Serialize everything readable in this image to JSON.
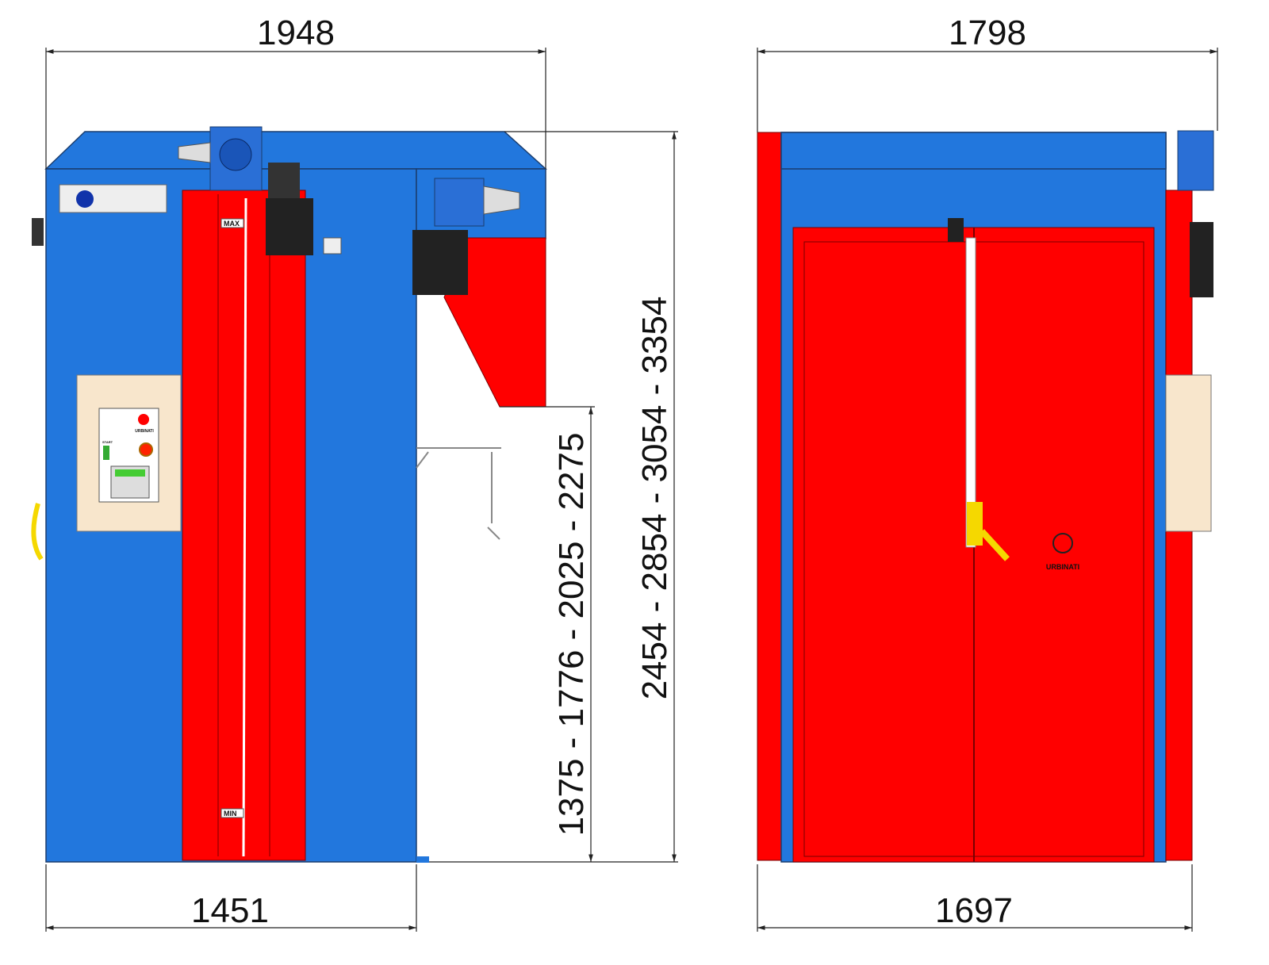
{
  "left_view": {
    "width_top": "1948",
    "width_bottom": "1451",
    "height_outer": "2454 - 2854 - 3054 - 3354",
    "height_inner": "1375 - 1776 - 2025 - 2275",
    "max_label": "MAX",
    "min_label": "MIN",
    "panel_logo": "URBINATI",
    "panel_start": "START"
  },
  "right_view": {
    "width_top": "1798",
    "width_bottom": "1697",
    "door_logo": "URBINATI"
  }
}
